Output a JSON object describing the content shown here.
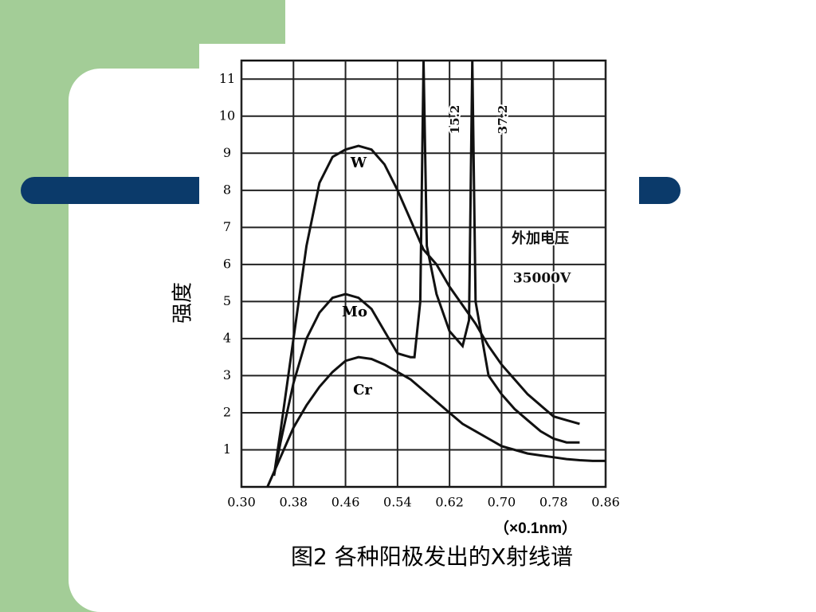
{
  "chart_data": {
    "type": "line",
    "caption": "图2 各种阳极发出的X射线谱",
    "ylabel": "强度",
    "xlabel": "（×0.1nm）",
    "annotations": [
      "15.2",
      "37.2",
      "外加电压",
      "35000V"
    ],
    "xlim": [
      0.3,
      0.86
    ],
    "xticks": [
      {
        "value": 0.3,
        "label": "0.30"
      },
      0.38,
      0.46,
      0.54,
      0.62,
      {
        "value": 0.7,
        "label": "0.70"
      },
      0.78,
      0.86
    ],
    "ylim": [
      0,
      11.5
    ],
    "yticks": [
      1,
      2,
      3,
      4,
      5,
      6,
      7,
      8,
      9,
      10,
      11
    ],
    "grid": true,
    "series": [
      {
        "name": "W",
        "color": "#111111",
        "x": [
          0.35,
          0.36,
          0.38,
          0.4,
          0.42,
          0.44,
          0.46,
          0.48,
          0.5,
          0.52,
          0.54,
          0.56,
          0.58,
          0.6,
          0.62,
          0.64,
          0.66,
          0.68,
          0.7,
          0.72,
          0.74,
          0.76,
          0.78,
          0.8,
          0.82
        ],
        "values": [
          0.3,
          1.5,
          4,
          6.5,
          8.2,
          8.9,
          9.1,
          9.2,
          9.1,
          8.7,
          8.0,
          7.2,
          6.4,
          6.0,
          5.4,
          4.9,
          4.4,
          3.8,
          3.3,
          2.9,
          2.5,
          2.2,
          1.9,
          1.8,
          1.7
        ]
      },
      {
        "name": "Mo",
        "color": "#111111",
        "x": [
          0.35,
          0.36,
          0.38,
          0.4,
          0.42,
          0.44,
          0.46,
          0.48,
          0.5,
          0.52,
          0.54,
          0.56,
          0.566,
          0.575,
          0.58,
          0.585,
          0.6,
          0.62,
          0.64,
          0.65,
          0.655,
          0.66,
          0.68,
          0.7,
          0.72,
          0.74,
          0.76,
          0.78,
          0.8,
          0.82
        ],
        "values": [
          0.3,
          1.2,
          2.8,
          4.0,
          4.7,
          5.1,
          5.2,
          5.1,
          4.8,
          4.2,
          3.6,
          3.5,
          3.5,
          5,
          11.5,
          6.5,
          5.2,
          4.2,
          3.8,
          4.5,
          11.5,
          5.0,
          3.0,
          2.5,
          2.1,
          1.8,
          1.5,
          1.3,
          1.2,
          1.2
        ]
      },
      {
        "name": "Cr",
        "color": "#111111",
        "x": [
          0.34,
          0.36,
          0.38,
          0.4,
          0.42,
          0.44,
          0.46,
          0.48,
          0.5,
          0.52,
          0.54,
          0.56,
          0.58,
          0.6,
          0.62,
          0.64,
          0.66,
          0.68,
          0.7,
          0.72,
          0.74,
          0.76,
          0.78,
          0.8,
          0.82,
          0.84,
          0.86
        ],
        "values": [
          0,
          0.8,
          1.6,
          2.2,
          2.7,
          3.1,
          3.4,
          3.5,
          3.45,
          3.3,
          3.1,
          2.9,
          2.6,
          2.3,
          2.0,
          1.7,
          1.5,
          1.3,
          1.1,
          1.0,
          0.9,
          0.85,
          0.8,
          0.75,
          0.72,
          0.7,
          0.7
        ]
      }
    ]
  }
}
